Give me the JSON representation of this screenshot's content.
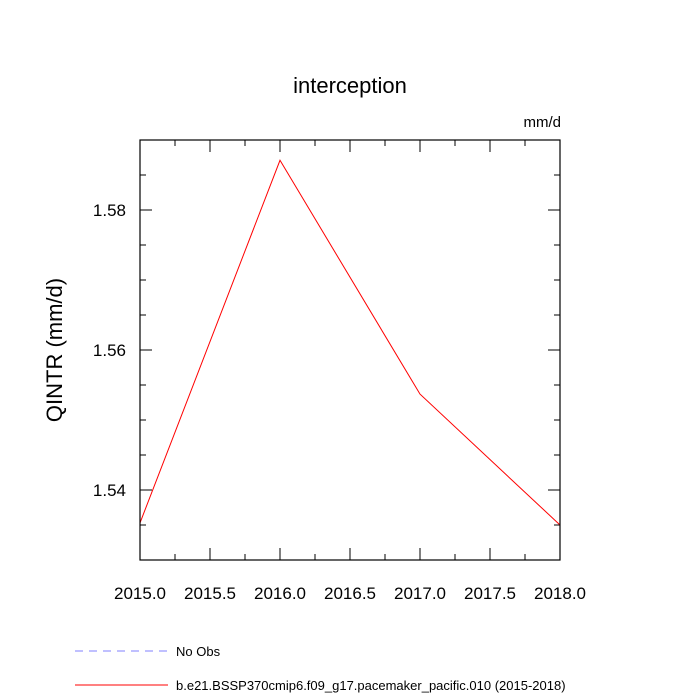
{
  "chart_data": {
    "type": "line",
    "title": "interception",
    "units_label": "mm/d",
    "ylabel": "QINTR  (mm/d)",
    "xlabel": "",
    "xlim": [
      2015.0,
      2018.0
    ],
    "ylim": [
      1.53,
      1.59
    ],
    "x_ticks": [
      2015.0,
      2015.5,
      2016.0,
      2016.5,
      2017.0,
      2017.5,
      2018.0
    ],
    "x_tick_labels": [
      "2015.0",
      "2015.5",
      "2016.0",
      "2016.5",
      "2017.0",
      "2017.5",
      "2018.0"
    ],
    "y_ticks": [
      1.54,
      1.56,
      1.58
    ],
    "y_tick_labels": [
      "1.54",
      "1.56",
      "1.58"
    ],
    "y_minor_step": 0.005,
    "x_minor_step": 0.25,
    "grid": false,
    "legend_position": "bottom-left",
    "series": [
      {
        "name": "No Obs",
        "color": "#8080ff",
        "style": "dashed",
        "x": [],
        "y": []
      },
      {
        "name": "b.e21.BSSP370cmip6.f09_g17.pacemaker_pacific.010 (2015-2018)",
        "color": "#ff0000",
        "style": "solid",
        "x": [
          2015.0,
          2016.0,
          2017.0,
          2018.0
        ],
        "y": [
          1.5353,
          1.5871,
          1.5537,
          1.535
        ]
      }
    ]
  }
}
